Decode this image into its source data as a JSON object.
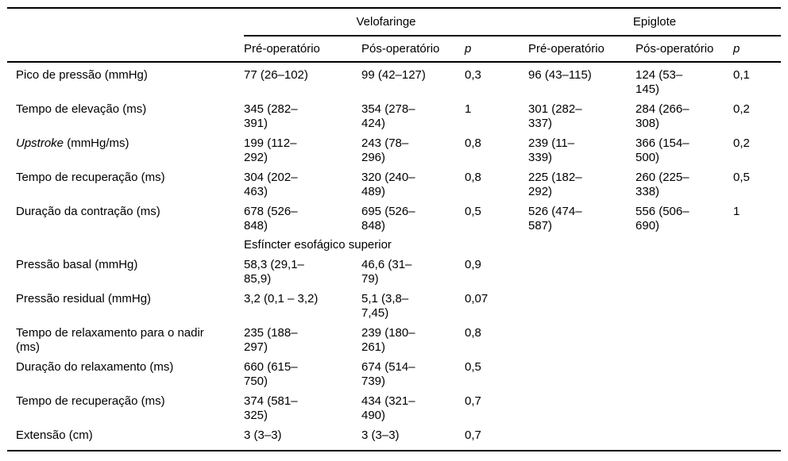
{
  "colors": {
    "background": "#ffffff",
    "text": "#000000",
    "rule": "#000000"
  },
  "table": {
    "groups": [
      {
        "label": "Velofaringe",
        "sub": [
          "Pré-operatório",
          "Pós-operatório",
          "p"
        ]
      },
      {
        "label": "Epiglote",
        "sub": [
          "Pré-operatório",
          "Pós-operatório",
          "p"
        ]
      }
    ],
    "section_header": "Esfíncter esofágico superior",
    "rows": [
      {
        "label": "Pico de pressão (mmHg)",
        "vf_pre": "77 (26–102)",
        "vf_pos": "99 (42–127)",
        "vf_p": "0,3",
        "ep_pre": "96 (43–115)",
        "ep_pos": "124 (53–\n145)",
        "ep_p": "0,1"
      },
      {
        "label": "Tempo de elevação (ms)",
        "vf_pre": "345 (282–\n391)",
        "vf_pos": "354 (278–\n424)",
        "vf_p": "1",
        "ep_pre": "301 (282–\n337)",
        "ep_pos": "284 (266–\n308)",
        "ep_p": "0,2"
      },
      {
        "label_em": "Upstroke",
        "label": " (mmHg/ms)",
        "vf_pre": "199 (112–\n292)",
        "vf_pos": "243 (78–\n296)",
        "vf_p": "0,8",
        "ep_pre": "239 (11–\n339)",
        "ep_pos": "366 (154–\n500)",
        "ep_p": "0,2"
      },
      {
        "label": "Tempo de recuperação (ms)",
        "vf_pre": "304 (202–\n463)",
        "vf_pos": "320 (240–\n489)",
        "vf_p": "0,8",
        "ep_pre": "225 (182–\n292)",
        "ep_pos": "260 (225–\n338)",
        "ep_p": "0,5"
      },
      {
        "label": "Duração da contração (ms)",
        "vf_pre": "678 (526–\n848)",
        "vf_pos": "695 (526–\n848)",
        "vf_p": "0,5",
        "ep_pre": "526 (474–\n587)",
        "ep_pos": "556 (506–\n690)",
        "ep_p": "1"
      },
      {
        "label": "Pressão basal (mmHg)",
        "vf_pre": "58,3 (29,1–\n85,9)",
        "vf_pos": "46,6 (31–\n79)",
        "vf_p": "0,9"
      },
      {
        "label": "Pressão residual (mmHg)",
        "vf_pre": "3,2 (0,1 – 3,2)",
        "vf_pos": "5,1 (3,8–\n7,45)",
        "vf_p": "0,07"
      },
      {
        "label": "Tempo de relaxamento para o nadir\n(ms)",
        "vf_pre": "235 (188–\n297)",
        "vf_pos": "239 (180–\n261)",
        "vf_p": "0,8"
      },
      {
        "label": "Duração do relaxamento (ms)",
        "vf_pre": "660 (615–\n750)",
        "vf_pos": "674 (514–\n739)",
        "vf_p": "0,5"
      },
      {
        "label": "Tempo de recuperação (ms)",
        "vf_pre": "374 (581–\n325)",
        "vf_pos": "434 (321–\n490)",
        "vf_p": "0,7"
      },
      {
        "label": "Extensão (cm)",
        "vf_pre": "3 (3–3)",
        "vf_pos": "3 (3–3)",
        "vf_p": "0,7"
      }
    ]
  }
}
